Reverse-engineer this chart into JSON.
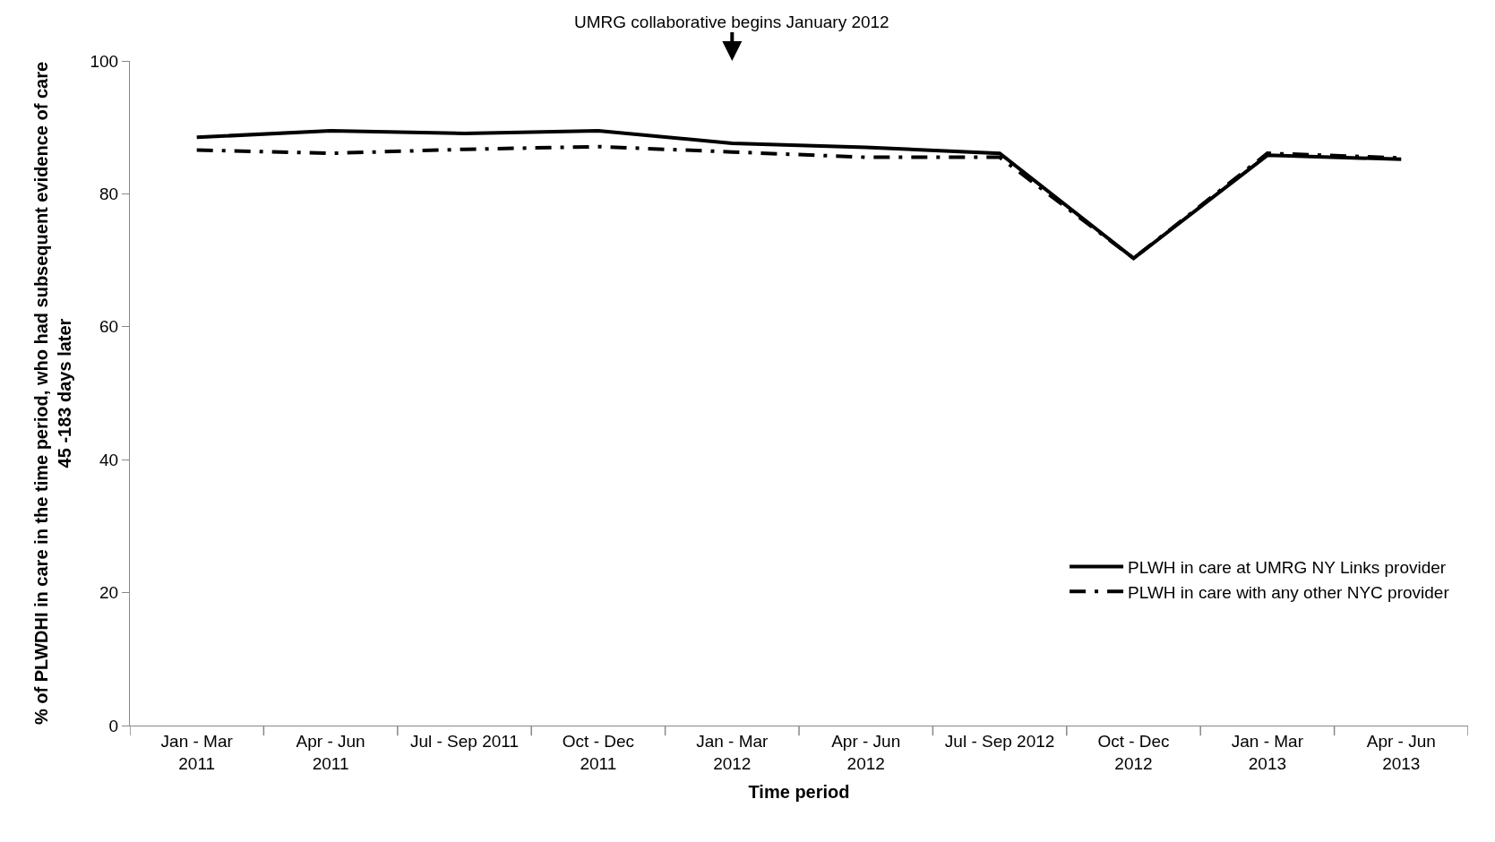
{
  "chart_data": {
    "type": "line",
    "xlabel": "Time period",
    "ylabel": "% of PLWDHI in care in the time period, who had subsequent evidence of care\n45 -183 days later",
    "categories": [
      "Jan - Mar\n2011",
      "Apr - Jun\n2011",
      "Jul - Sep 2011",
      "Oct - Dec\n2011",
      "Jan - Mar\n2012",
      "Apr - Jun\n2012",
      "Jul - Sep 2012",
      "Oct - Dec\n2012",
      "Jan - Mar\n2013",
      "Apr - Jun\n2013"
    ],
    "series": [
      {
        "name": "PLWH in care at UMRG NY Links provider",
        "color": "#000000",
        "line_style": "solid",
        "values": [
          88.5,
          89.5,
          89.1,
          89.5,
          87.6,
          87.0,
          86.1,
          70.3,
          85.8,
          85.2
        ]
      },
      {
        "name": "PLWH in care with any other NYC provider",
        "color": "#000000",
        "line_style": "dashed",
        "values": [
          86.6,
          86.1,
          86.7,
          87.1,
          86.3,
          85.5,
          85.5,
          70.3,
          86.1,
          85.4
        ]
      }
    ],
    "annotations": [
      "UMRG collaborative begins January 2012"
    ],
    "ylim": [
      0,
      100
    ],
    "yticks": [
      0,
      20,
      40,
      60,
      80,
      100
    ],
    "legend": "bottom right",
    "marker": "none"
  }
}
